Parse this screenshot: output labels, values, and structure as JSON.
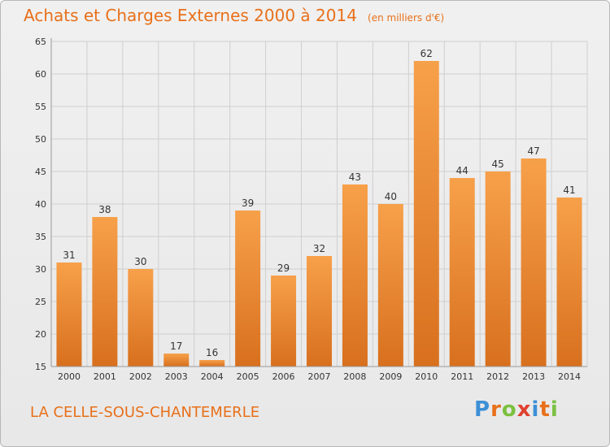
{
  "header": {
    "title": "Achats et Charges Externes 2000 à 2014",
    "subtitle": "(en milliers d'€)"
  },
  "footer": {
    "commune": "LA CELLE-SOUS-CHANTEMERLE",
    "logo_letters": [
      "P",
      "r",
      "o",
      "x",
      "i",
      "t",
      "i"
    ],
    "logo_colors": [
      "#3c8fd6",
      "#e8701a",
      "#7cc040",
      "#e04030",
      "#3c8fd6",
      "#e8701a",
      "#7cc040"
    ]
  },
  "colors": {
    "bar_light": "#f7a04a",
    "bar_dark": "#d8701e",
    "accent": "#e8701a",
    "grid": "#cfcfcf",
    "axis_text": "#333333"
  },
  "chart_data": {
    "type": "bar",
    "categories": [
      "2000",
      "2001",
      "2002",
      "2003",
      "2004",
      "2005",
      "2006",
      "2007",
      "2008",
      "2009",
      "2010",
      "2011",
      "2012",
      "2013",
      "2014"
    ],
    "values": [
      31,
      38,
      30,
      17,
      16,
      39,
      29,
      32,
      43,
      40,
      62,
      44,
      45,
      47,
      41
    ],
    "data_labels": [
      "31",
      "38",
      "30",
      "17",
      "16",
      "39",
      "29",
      "32",
      "43",
      "40",
      "62",
      "44",
      "45",
      "47",
      "41"
    ],
    "yticks": [
      "15",
      "20",
      "25",
      "30",
      "35",
      "40",
      "45",
      "50",
      "55",
      "60",
      "65"
    ],
    "ylim": [
      15,
      65
    ],
    "grid": true,
    "legend": "none"
  }
}
